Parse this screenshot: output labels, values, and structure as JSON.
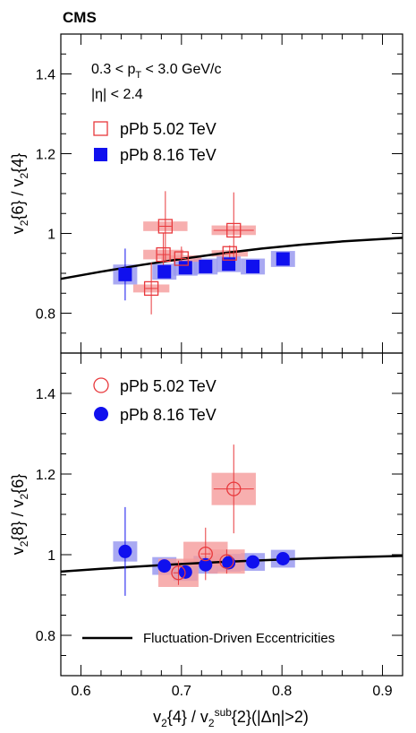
{
  "header": {
    "experiment": "CMS"
  },
  "top_panel": {
    "annotations": [
      "0.3 < p_T < 3.0 GeV/c",
      "|η| < 2.4"
    ],
    "legend": [
      {
        "label": "pPb 5.02 TeV",
        "marker": "open-square",
        "color": "#e8383c"
      },
      {
        "label": "pPb 8.16 TeV",
        "marker": "filled-square",
        "color": "#1010ee"
      }
    ]
  },
  "bottom_panel": {
    "legend": [
      {
        "label": "pPb 5.02 TeV",
        "marker": "open-circle",
        "color": "#e8383c"
      },
      {
        "label": "pPb 8.16 TeV",
        "marker": "filled-circle",
        "color": "#1010ee"
      }
    ],
    "curve_legend": "Fluctuation-Driven Eccentricities"
  },
  "colors": {
    "red": "#e8383c",
    "red_box": "#f59b9b",
    "blue": "#1010ee",
    "blue_box": "#9a9af0",
    "curve": "#000000"
  },
  "chart_data": [
    {
      "type": "scatter",
      "ylabel": "v2{6} / v2{4}",
      "xlim": [
        0.58,
        0.92
      ],
      "ylim": [
        0.7,
        1.5
      ],
      "yticks": [
        "0.8",
        "1",
        "1.2",
        "1.4"
      ],
      "series": [
        {
          "name": "pPb 5.02 TeV",
          "points": [
            {
              "x": 0.67,
              "y": 0.862,
              "yerr": 0.065,
              "xerr": 0.006,
              "sx": 0.018,
              "sy": 0.01
            },
            {
              "x": 0.682,
              "y": 0.947,
              "yerr": 0.055,
              "xerr": 0.006,
              "sx": 0.02,
              "sy": 0.012
            },
            {
              "x": 0.684,
              "y": 1.018,
              "yerr": 0.088,
              "xerr": 0.006,
              "sx": 0.022,
              "sy": 0.012
            },
            {
              "x": 0.7,
              "y": 0.937,
              "yerr": 0.03,
              "xerr": 0.005,
              "sx": 0.02,
              "sy": 0.008
            },
            {
              "x": 0.748,
              "y": 0.95,
              "yerr": 0.02,
              "xerr": 0.005,
              "sx": 0.018,
              "sy": 0.008
            },
            {
              "x": 0.752,
              "y": 1.008,
              "yerr": 0.095,
              "xerr": 0.02,
              "sx": 0.022,
              "sy": 0.012
            }
          ]
        },
        {
          "name": "pPb 8.16 TeV",
          "points": [
            {
              "x": 0.644,
              "y": 0.897,
              "yerr": 0.065,
              "sx": 0.012,
              "sy": 0.025
            },
            {
              "x": 0.683,
              "y": 0.904,
              "yerr": 0.015,
              "sx": 0.012,
              "sy": 0.02
            },
            {
              "x": 0.704,
              "y": 0.914,
              "yerr": 0.01,
              "sx": 0.012,
              "sy": 0.02
            },
            {
              "x": 0.724,
              "y": 0.917,
              "yerr": 0.01,
              "sx": 0.012,
              "sy": 0.02
            },
            {
              "x": 0.747,
              "y": 0.923,
              "yerr": 0.01,
              "sx": 0.012,
              "sy": 0.02
            },
            {
              "x": 0.771,
              "y": 0.917,
              "yerr": 0.008,
              "sx": 0.012,
              "sy": 0.02
            },
            {
              "x": 0.801,
              "y": 0.936,
              "yerr": 0.008,
              "sx": 0.012,
              "sy": 0.02
            }
          ]
        }
      ],
      "curve": {
        "x": [
          0.58,
          0.62,
          0.66,
          0.7,
          0.74,
          0.78,
          0.82,
          0.86,
          0.92
        ],
        "y": [
          0.886,
          0.904,
          0.921,
          0.936,
          0.95,
          0.962,
          0.972,
          0.98,
          0.989
        ]
      }
    },
    {
      "type": "scatter",
      "ylabel": "v2{8} / v2{6}",
      "xlabel": "v2{4} / v2sub{2}(|Δη|>2)",
      "xlim": [
        0.58,
        0.92
      ],
      "ylim": [
        0.7,
        1.5
      ],
      "xticks": [
        "0.6",
        "0.7",
        "0.8",
        "0.9"
      ],
      "yticks": [
        "0.8",
        "1",
        "1.2",
        "1.4"
      ],
      "series": [
        {
          "name": "pPb 5.02 TeV",
          "points": [
            {
              "x": 0.697,
              "y": 0.955,
              "yerr": 0.03,
              "xerr": 0.005,
              "sx": 0.02,
              "sy": 0.035
            },
            {
              "x": 0.724,
              "y": 1.002,
              "yerr": 0.065,
              "xerr": 0.005,
              "sx": 0.022,
              "sy": 0.03
            },
            {
              "x": 0.745,
              "y": 0.983,
              "yerr": 0.03,
              "xerr": 0.005,
              "sx": 0.018,
              "sy": 0.03
            },
            {
              "x": 0.752,
              "y": 1.163,
              "yerr": 0.11,
              "xerr": 0.02,
              "sx": 0.022,
              "sy": 0.04
            }
          ]
        },
        {
          "name": "pPb 8.16 TeV",
          "points": [
            {
              "x": 0.644,
              "y": 1.008,
              "yerr": 0.11,
              "sx": 0.012,
              "sy": 0.025
            },
            {
              "x": 0.683,
              "y": 0.972,
              "yerr": 0.01,
              "sx": 0.012,
              "sy": 0.022
            },
            {
              "x": 0.704,
              "y": 0.957,
              "yerr": 0.01,
              "sx": 0.012,
              "sy": 0.022
            },
            {
              "x": 0.724,
              "y": 0.975,
              "yerr": 0.01,
              "sx": 0.012,
              "sy": 0.022
            },
            {
              "x": 0.747,
              "y": 0.98,
              "yerr": 0.008,
              "sx": 0.012,
              "sy": 0.022
            },
            {
              "x": 0.771,
              "y": 0.982,
              "yerr": 0.008,
              "sx": 0.012,
              "sy": 0.022
            },
            {
              "x": 0.801,
              "y": 0.99,
              "yerr": 0.008,
              "sx": 0.012,
              "sy": 0.022
            }
          ]
        }
      ],
      "curve": {
        "x": [
          0.58,
          0.62,
          0.66,
          0.7,
          0.74,
          0.78,
          0.82,
          0.86,
          0.92
        ],
        "y": [
          0.958,
          0.965,
          0.971,
          0.977,
          0.982,
          0.986,
          0.99,
          0.993,
          0.997
        ]
      }
    }
  ]
}
